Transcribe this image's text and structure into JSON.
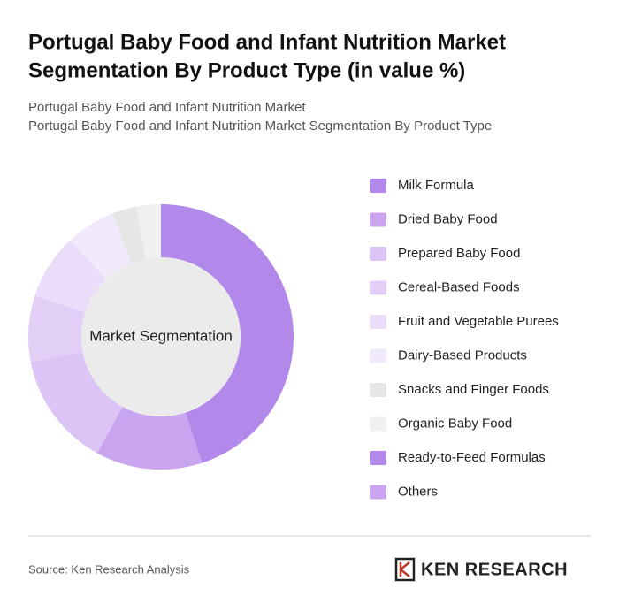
{
  "chart_data": {
    "type": "donut",
    "title": [
      "Portugal Baby Food and Infant Nutrition Market",
      "Segmentation By Product Type (in value %)"
    ],
    "subtitle": [
      "Portugal Baby Food and Infant Nutrition Market",
      "Portugal Baby Food and Infant Nutrition Market Segmentation By Product Type"
    ],
    "center_label": "Market Segmentation",
    "categories": [
      "Milk Formula",
      "Dried Baby Food",
      "Prepared Baby Food",
      "Cereal-Based Foods",
      "Fruit and Vegetable Purees",
      "Dairy-Based Products",
      "Snacks and Finger Foods",
      "Organic Baby Food",
      "Ready-to-Feed Formulas",
      "Others"
    ],
    "values": [
      45,
      13,
      14,
      8,
      8,
      6,
      3,
      3,
      0,
      0
    ],
    "colors": [
      "#b388eb",
      "#c9a5f0",
      "#dcc4f5",
      "#e2cff6",
      "#e9ddf9",
      "#f1eafb",
      "#e6e6e6",
      "#f0f0f0",
      "#b388eb",
      "#c9a5f0"
    ],
    "source": "Source: Ken Research Analysis",
    "logo": "KEN RESEARCH"
  }
}
